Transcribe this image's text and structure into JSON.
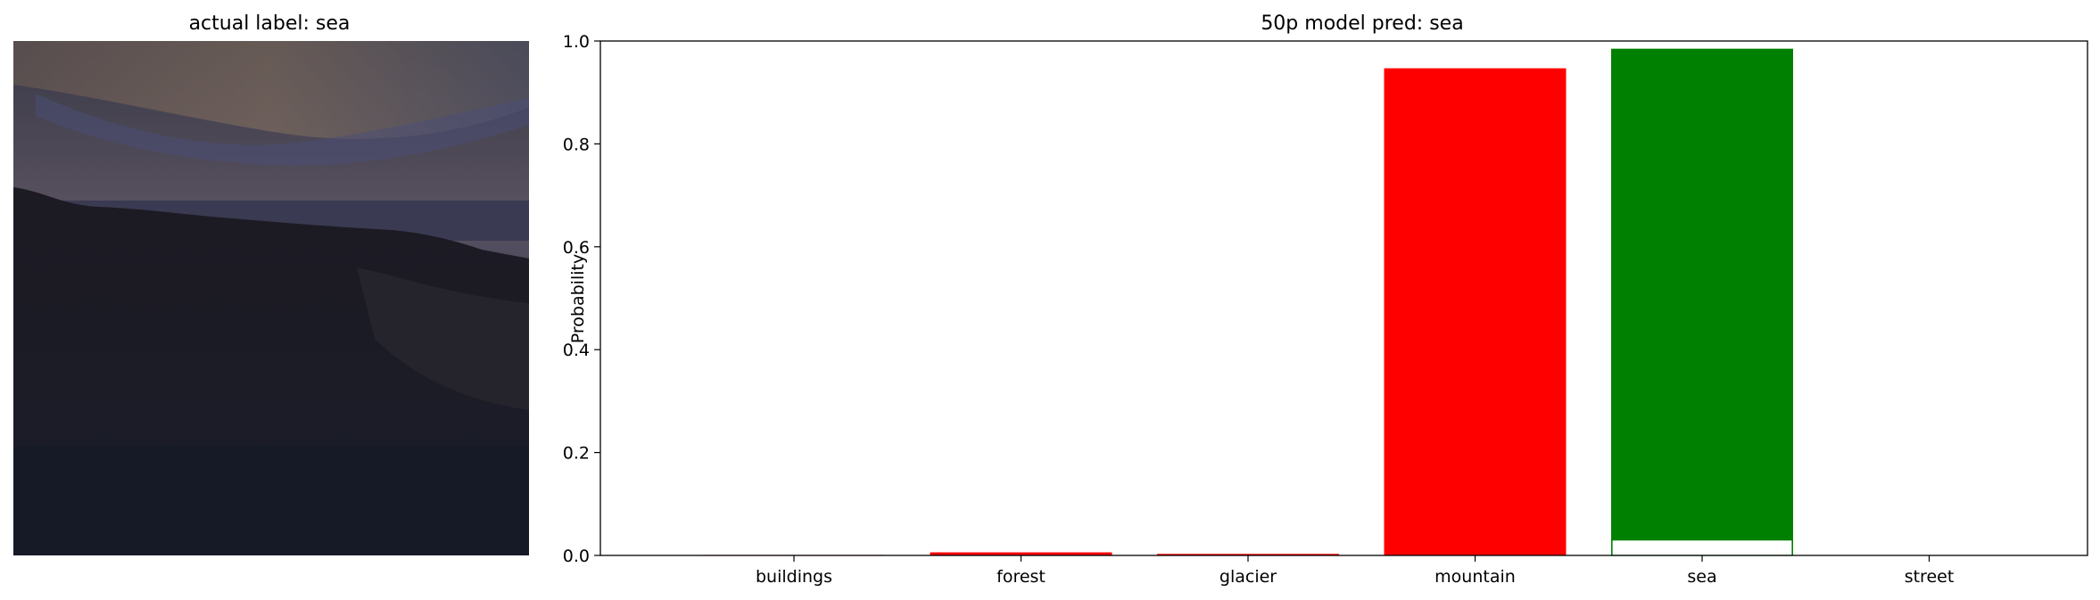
{
  "left_panel": {
    "title": "actual label: sea",
    "image_description_name": "dark coastal sea scene at dusk"
  },
  "chart_data": {
    "type": "bar",
    "title": "50p model pred: sea",
    "xlabel": "",
    "ylabel": "Probability",
    "ylim": [
      0,
      1.0
    ],
    "yticks": [
      0.0,
      0.2,
      0.4,
      0.6,
      0.8,
      1.0
    ],
    "ytick_labels": [
      "0.0",
      "0.2",
      "0.4",
      "0.6",
      "0.8",
      "1.0"
    ],
    "categories": [
      "buildings",
      "forest",
      "glacier",
      "mountain",
      "sea",
      "street"
    ],
    "values": [
      0.001,
      0.006,
      0.003,
      0.947,
      0.985,
      0.0008
    ],
    "bar_colors": [
      "#ff0000",
      "#ff0000",
      "#ff0000",
      "#ff0000",
      "#008000",
      "#ff0000"
    ],
    "overlay_series": {
      "values": [
        0.0,
        0.0,
        0.0,
        0.0,
        0.03,
        0.0
      ],
      "edge_color": "#008000"
    },
    "grid": false,
    "legend": "none"
  }
}
